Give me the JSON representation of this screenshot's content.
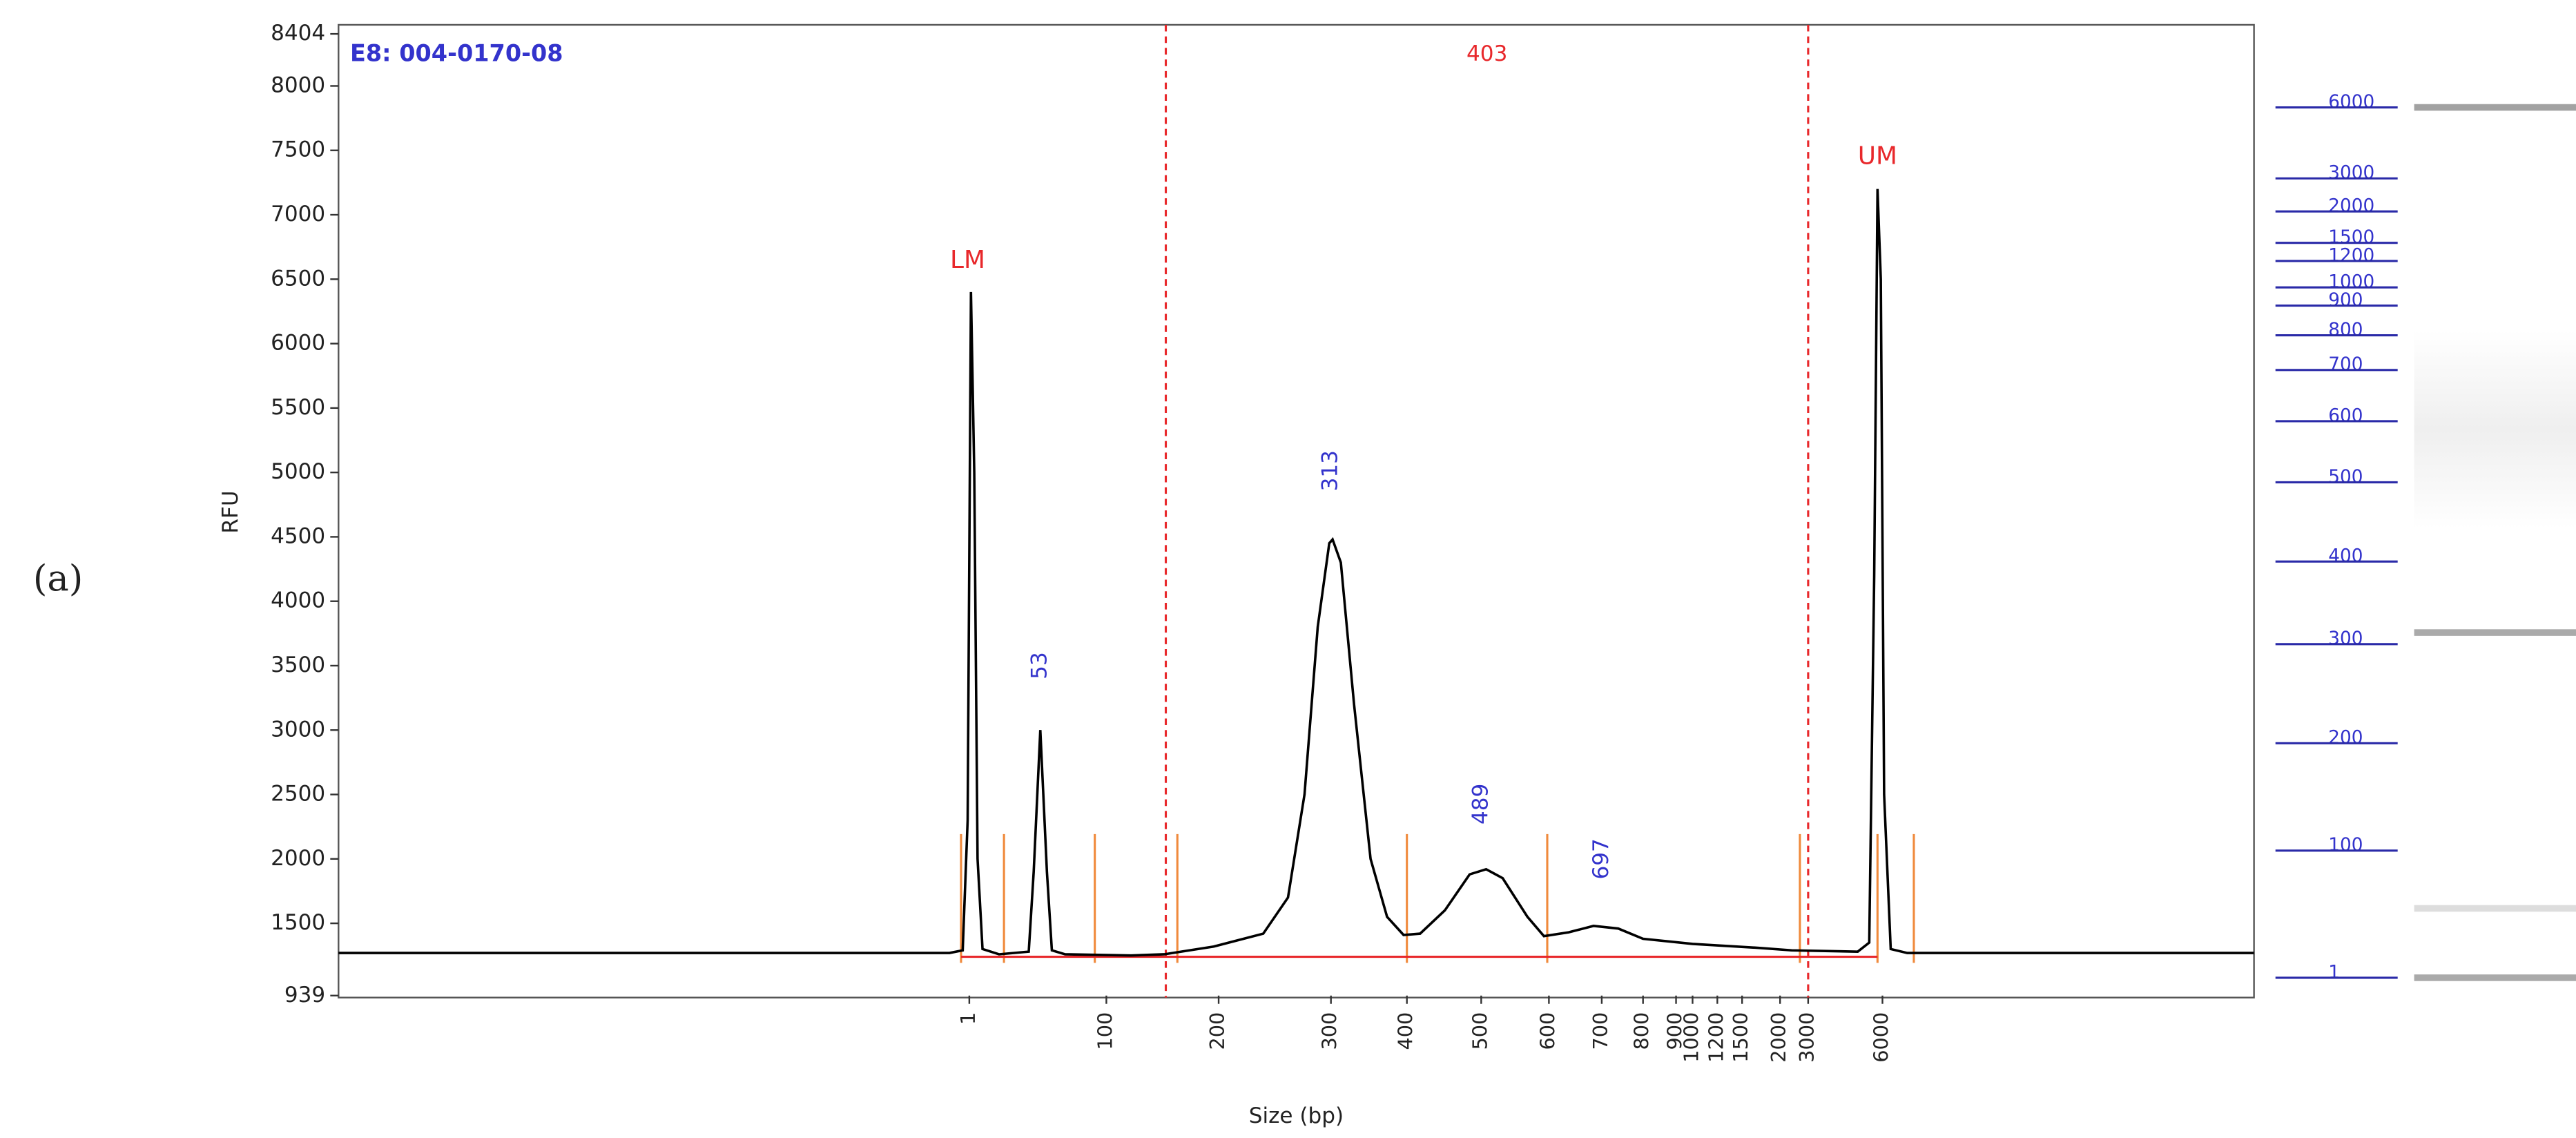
{
  "figure_label": "(a)",
  "chart_data": [
    {
      "type": "line",
      "sample": "E8: 004-0170-08",
      "xlabel": "Size (bp)",
      "ylabel": "RFU",
      "xlim": [
        0,
        1160
      ],
      "ylim": [
        939,
        8404
      ],
      "yticks": [
        939,
        1500,
        2000,
        2500,
        3000,
        3500,
        4000,
        4500,
        5000,
        5500,
        6000,
        6500,
        7000,
        7500,
        8000,
        8404
      ],
      "xticks": [
        {
          "value": 382,
          "label": "1"
        },
        {
          "value": 465,
          "label": "100"
        },
        {
          "value": 533,
          "label": "200"
        },
        {
          "value": 601,
          "label": "300"
        },
        {
          "value": 647,
          "label": "400"
        },
        {
          "value": 692,
          "label": "500"
        },
        {
          "value": 733,
          "label": "600"
        },
        {
          "value": 765,
          "label": "700"
        },
        {
          "value": 790,
          "label": "800"
        },
        {
          "value": 810,
          "label": "900"
        },
        {
          "value": 820,
          "label": "1000"
        },
        {
          "value": 835,
          "label": "1200"
        },
        {
          "value": 850,
          "label": "1500"
        },
        {
          "value": 873,
          "label": "2000"
        },
        {
          "value": 890,
          "label": "3000"
        },
        {
          "value": 935,
          "label": "6000"
        }
      ],
      "x": [
        0,
        370,
        378,
        381,
        383,
        385,
        387,
        390,
        400,
        418,
        421,
        425,
        429,
        432,
        440,
        480,
        500,
        530,
        560,
        575,
        585,
        593,
        600,
        602,
        607,
        615,
        625,
        635,
        645,
        655,
        670,
        685,
        695,
        705,
        720,
        730,
        745,
        760,
        775,
        790,
        820,
        860,
        880,
        920,
        927,
        930,
        932,
        934,
        936,
        940,
        950,
        1160
      ],
      "values": [
        1270,
        1270,
        1290,
        2300,
        6400,
        5000,
        2000,
        1300,
        1260,
        1280,
        1900,
        3000,
        1900,
        1290,
        1260,
        1250,
        1260,
        1320,
        1420,
        1700,
        2500,
        3800,
        4450,
        4480,
        4300,
        3200,
        2000,
        1550,
        1410,
        1420,
        1600,
        1880,
        1920,
        1850,
        1550,
        1400,
        1430,
        1480,
        1460,
        1380,
        1340,
        1310,
        1290,
        1280,
        1350,
        4200,
        7200,
        6500,
        2500,
        1300,
        1270,
        1270
      ],
      "color": "#000000",
      "marker_labels": [
        {
          "text": "LM",
          "x": 381,
          "y": 6641
        },
        {
          "text": "UM",
          "x": 932,
          "y": 7448
        }
      ],
      "peak_labels": [
        {
          "text": "53",
          "x": 425,
          "y": 3500
        },
        {
          "text": "313",
          "x": 601,
          "y": 5013
        },
        {
          "text": "489",
          "x": 692,
          "y": 2426
        },
        {
          "text": "697",
          "x": 765,
          "y": 2000
        }
      ],
      "region": {
        "label": "403",
        "x": [
          501,
          890
        ]
      },
      "peak_bounds": [
        377,
        403,
        458,
        508,
        647,
        732,
        885,
        932,
        954
      ],
      "baseline": {
        "x": [
          377,
          932
        ],
        "y": 1240
      }
    },
    {
      "type": "gel",
      "ylim": [
        0,
        689
      ],
      "ladder": [
        {
          "value": 65,
          "label": "6000"
        },
        {
          "value": 108,
          "label": "3000"
        },
        {
          "value": 128,
          "label": "2000"
        },
        {
          "value": 147,
          "label": "1500"
        },
        {
          "value": 158,
          "label": "1200"
        },
        {
          "value": 174,
          "label": "1000"
        },
        {
          "value": 185,
          "label": "900"
        },
        {
          "value": 203,
          "label": "800"
        },
        {
          "value": 224,
          "label": "700"
        },
        {
          "value": 255,
          "label": "600"
        },
        {
          "value": 292,
          "label": "500"
        },
        {
          "value": 340,
          "label": "400"
        },
        {
          "value": 390,
          "label": "300"
        },
        {
          "value": 450,
          "label": "200"
        },
        {
          "value": 515,
          "label": "100"
        },
        {
          "value": 592,
          "label": "1"
        }
      ],
      "bands": [
        65,
        383,
        550,
        592
      ],
      "band_opacity": [
        0.55,
        0.5,
        0.2,
        0.5
      ]
    }
  ]
}
